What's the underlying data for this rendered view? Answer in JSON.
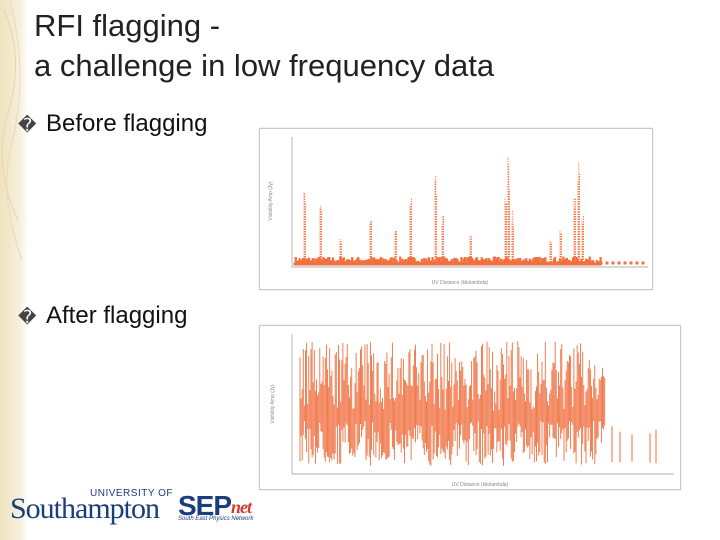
{
  "slide": {
    "title_line1": "RFI flagging  -",
    "title_line2": "a challenge in low frequency data",
    "bullet_glyph": "�",
    "bullets": [
      "Before flagging",
      "After flagging"
    ]
  },
  "plots": {
    "before": {
      "xlabel": "UV Distance (kilolambda)",
      "ylabel": "Visibility Amp (Jy)",
      "color": "#f07040"
    },
    "after": {
      "xlabel": "UV Distance (kilolambda)",
      "ylabel": "Visibility Amp (Jy)",
      "color": "#f07040"
    }
  },
  "logos": {
    "university_of": "UNIVERSITY OF",
    "southampton": "Southampton",
    "sepnet_sep": "SEP",
    "sepnet_net": "net",
    "sepnet_sub": "South East Physics Network"
  },
  "colors": {
    "accent": "#f07040",
    "brand_blue": "#1a3d7c",
    "brand_red": "#d23a2a",
    "band": "#efe3bf"
  }
}
